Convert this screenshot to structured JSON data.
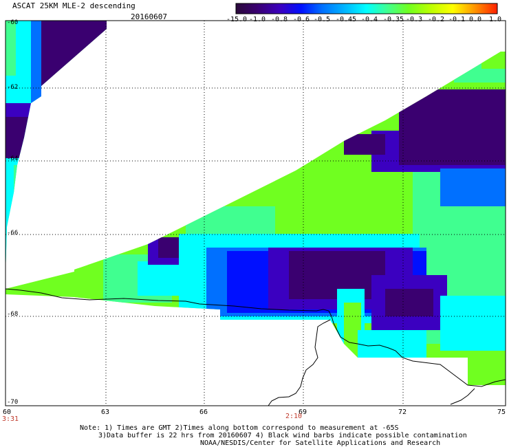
{
  "header": {
    "title": "ASCAT 25KM MLE-2 descending",
    "date": "20160607"
  },
  "colorbar": {
    "labels": [
      "-15.0",
      "-1.0",
      "-0.8",
      "-0.6",
      "-0.5",
      "-0.45",
      "-0.4",
      "-0.35",
      "-0.3",
      "-0.2",
      "-0.1",
      "0.0",
      "1.0"
    ],
    "colors": [
      "#2a0a3a",
      "#3a0070",
      "#3b00c0",
      "#0010ff",
      "#0070ff",
      "#00b8ff",
      "#00ffff",
      "#40ff90",
      "#70ff20",
      "#c0ff00",
      "#ffff00",
      "#ff9a00",
      "#ff2000"
    ]
  },
  "axes": {
    "x_ticks": [
      "60",
      "63",
      "66",
      "69",
      "72",
      "75"
    ],
    "y_ticks": [
      "-60",
      "-62",
      "-64",
      "-66",
      "-68",
      "-70"
    ]
  },
  "times": {
    "left": "3:31",
    "center": "2:10"
  },
  "notes": {
    "line1": "Note: 1) Times are GMT 2)Times along bottom correspond to measurement at -65S",
    "line2": "3)Data buffer is 22 hrs from 20160607 4) Black wind barbs indicate possible contamination",
    "line3": "NOAA/NESDIS/Center for Satellite Applications and Research"
  }
}
